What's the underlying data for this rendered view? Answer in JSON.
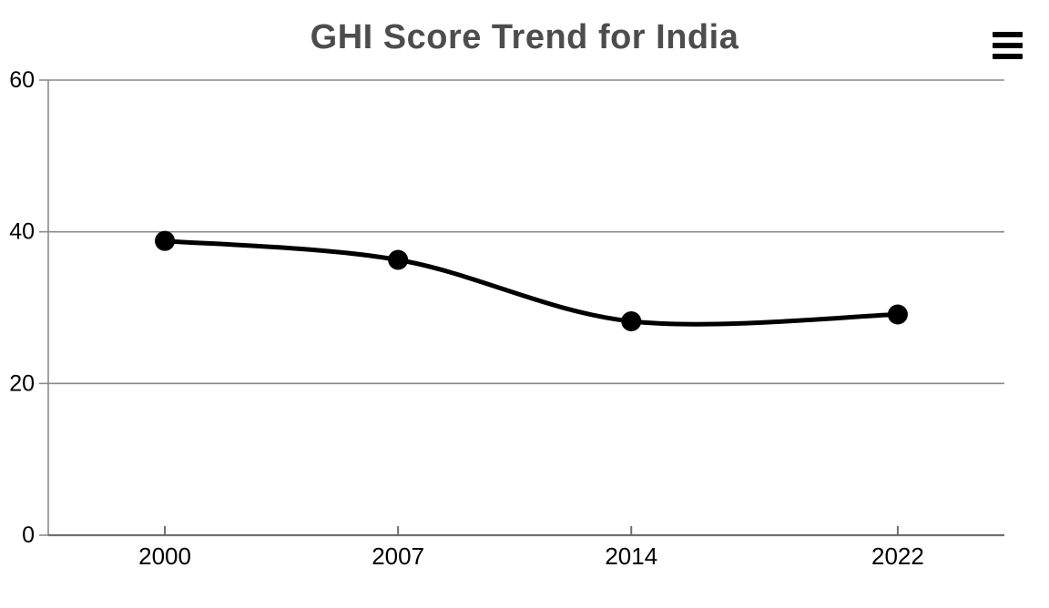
{
  "chart_data": {
    "type": "line",
    "curve": "spline",
    "title": "GHI Score Trend for India",
    "x": [
      2000,
      2007,
      2014,
      2022
    ],
    "values": [
      38.8,
      36.3,
      28.2,
      29.1
    ],
    "xticks": [
      2000,
      2007,
      2014,
      2022
    ],
    "yticks": [
      0,
      20,
      40,
      60
    ],
    "ylim": [
      0,
      60
    ],
    "xlim": [
      1996.5,
      2025.2
    ],
    "xlabel": "",
    "ylabel": "",
    "legend": "none",
    "grid": "horizontal",
    "line_color": "#000000",
    "marker_color": "#000000",
    "grid_color": "#8a8a8a",
    "axis_color": "#6f6f6f",
    "tick_label_color": "#000000",
    "title_color": "#4d4d4d"
  },
  "toolbar": {
    "menu_icon": "hamburger-menu-icon"
  }
}
